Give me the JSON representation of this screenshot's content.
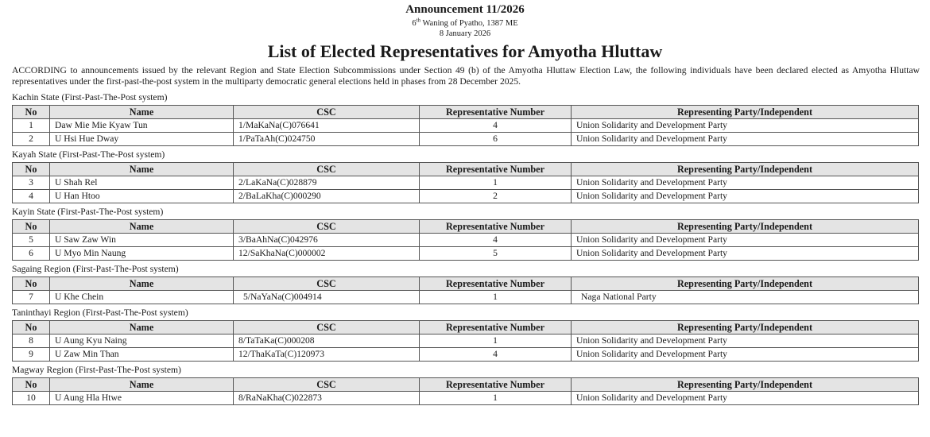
{
  "header": {
    "announcement": "Announcement 11/2026",
    "date_myanmar_day": "6",
    "date_myanmar_sup": "th",
    "date_myanmar_rest": " Waning of Pyatho, 1387 ME",
    "date_gregorian": "8 January 2026",
    "title": "List of Elected Representatives for Amyotha Hluttaw",
    "intro": "ACCORDING to announcements issued by the relevant Region and State Election Subcommissions under Section 49 (b) of the Amyotha Hluttaw Election Law, the following individuals have been declared elected as Amyotha Hluttaw representatives under the first-past-the-post system in the multiparty democratic general elections held in phases from 28 December 2025."
  },
  "columns": [
    "No",
    "Name",
    "CSC",
    "Representative Number",
    "Representing Party/Independent"
  ],
  "sections": [
    {
      "label": "Kachin State (First-Past-The-Post system)",
      "rows": [
        [
          "1",
          "Daw Mie Mie Kyaw Tun",
          "1/MaKaNa(C)076641",
          "4",
          "Union Solidarity and Development Party"
        ],
        [
          "2",
          "U Hsi Hue Dway",
          "1/PaTaAh(C)024750",
          "6",
          "Union Solidarity and Development Party"
        ]
      ]
    },
    {
      "label": "Kayah State (First-Past-The-Post system)",
      "rows": [
        [
          "3",
          "U Shah Rel",
          "2/LaKaNa(C)028879",
          "1",
          "Union Solidarity and Development Party"
        ],
        [
          "4",
          "U Han Htoo",
          "2/BaLaKha(C)000290",
          "2",
          "Union Solidarity and Development Party"
        ]
      ]
    },
    {
      "label": "Kayin State (First-Past-The-Post system)",
      "rows": [
        [
          "5",
          "U Saw Zaw Win",
          "3/BaAhNa(C)042976",
          "4",
          "Union Solidarity and Development Party"
        ],
        [
          "6",
          "U Myo Min Naung",
          "12/SaKhaNa(C)000002",
          "5",
          "Union Solidarity and Development Party"
        ]
      ]
    },
    {
      "label": "Sagaing Region (First-Past-The-Post system)",
      "rows": [
        [
          "7",
          "U Khe Chein",
          "5/NaYaNa(C)004914",
          "1",
          "Naga National Party"
        ]
      ]
    },
    {
      "label": "Taninthayi Region (First-Past-The-Post system)",
      "rows": [
        [
          "8",
          "U Aung Kyu Naing",
          "8/TaTaKa(C)000208",
          "1",
          "Union Solidarity and Development Party"
        ],
        [
          "9",
          "U Zaw Min Than",
          "12/ThaKaTa(C)120973",
          "4",
          "Union Solidarity and Development Party"
        ]
      ]
    },
    {
      "label": "Magway Region (First-Past-The-Post system)",
      "rows": [
        [
          "10",
          "U Aung Hla Htwe",
          "8/RaNaKha(C)022873",
          "1",
          "Union Solidarity and Development Party"
        ]
      ]
    }
  ]
}
